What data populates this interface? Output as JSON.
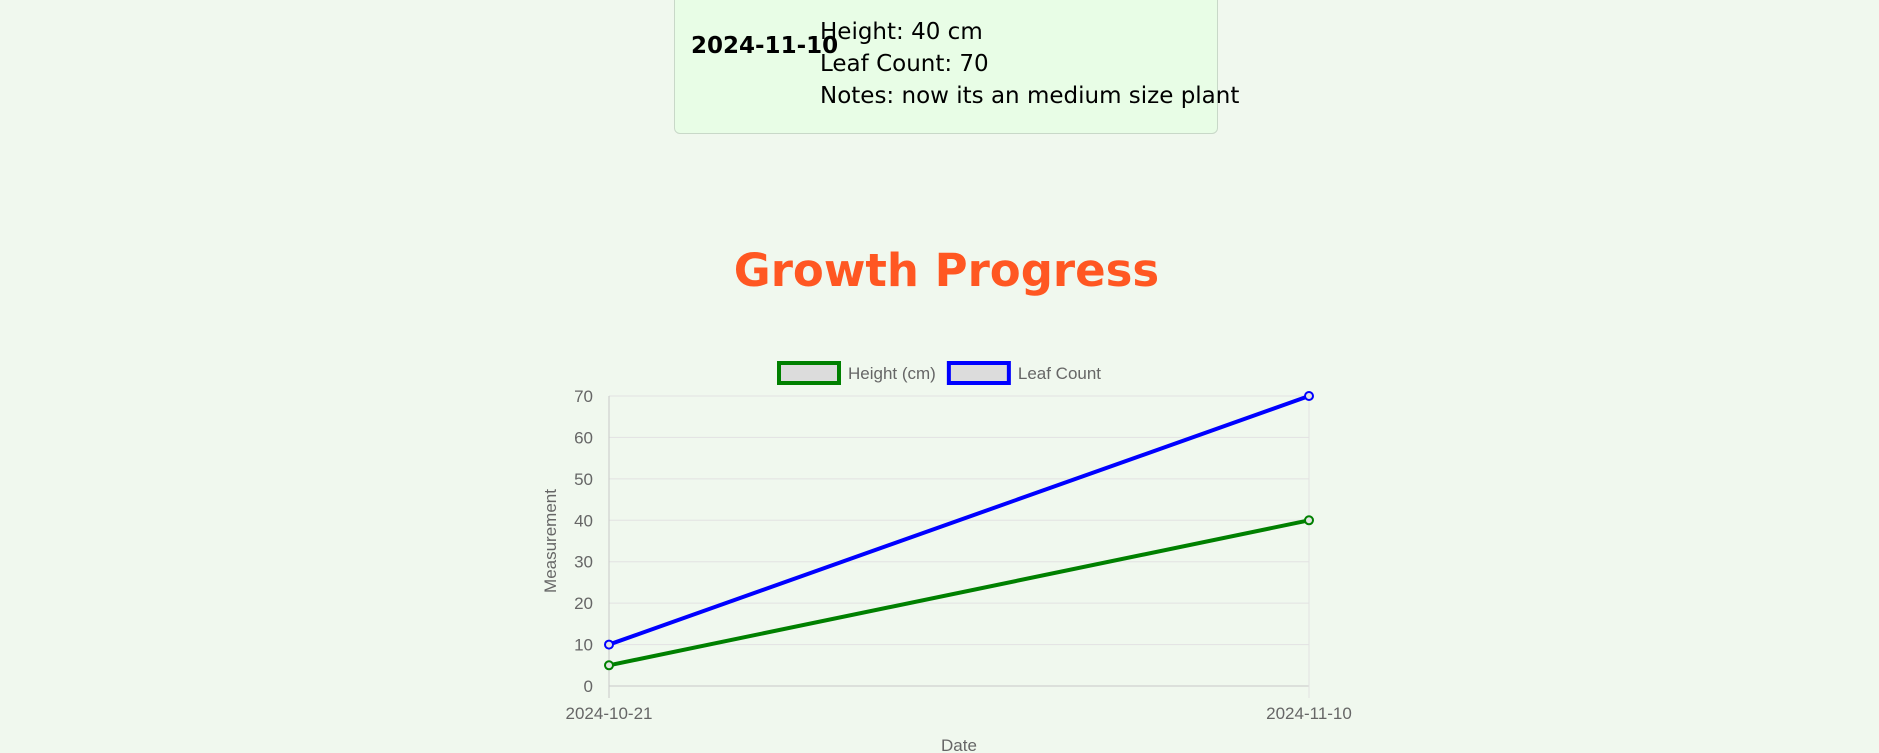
{
  "log_entry": {
    "date": "2024-11-10",
    "height": "Height: 40 cm",
    "leaf_count": "Leaf Count: 70",
    "notes": "Notes: now its an medium size plant"
  },
  "section_title": "Growth Progress",
  "chart_data": {
    "type": "line",
    "categories": [
      "2024-10-21",
      "2024-11-10"
    ],
    "series": [
      {
        "name": "Height (cm)",
        "values": [
          5,
          40
        ],
        "color": "#008000"
      },
      {
        "name": "Leaf Count",
        "values": [
          10,
          70
        ],
        "color": "#0000ff"
      }
    ],
    "xlabel": "Date",
    "ylabel": "Measurement",
    "ylim": [
      0,
      70
    ],
    "yticks": [
      0,
      10,
      20,
      30,
      40,
      50,
      60,
      70
    ],
    "grid": true,
    "legend": "top-center"
  }
}
